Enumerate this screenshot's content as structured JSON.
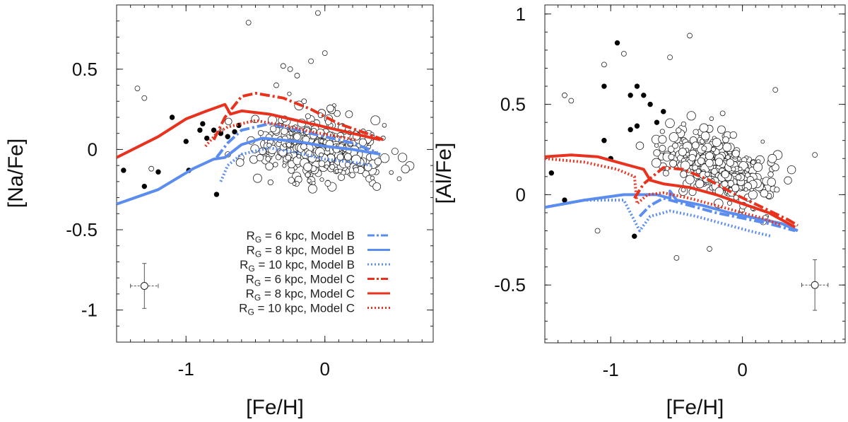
{
  "chart_data": [
    {
      "type": "scatter",
      "name": "sodium-panel",
      "xlabel": "[Fe/H]",
      "ylabel": "[Na/Fe]",
      "xlim": [
        -1.5,
        0.78
      ],
      "ylim": [
        -1.2,
        0.9
      ],
      "xticks": [
        {
          "v": -1,
          "label": "-1"
        },
        {
          "v": 0,
          "label": "0"
        }
      ],
      "yticks": [
        {
          "v": 0.5,
          "label": "0.5"
        },
        {
          "v": 0,
          "label": "0"
        },
        {
          "v": -0.5,
          "label": "-0.5"
        },
        {
          "v": -1,
          "label": "-1"
        }
      ],
      "filled_stars": [
        [
          -1.45,
          -0.13
        ],
        [
          -1.3,
          -0.23
        ],
        [
          -1.2,
          -0.14
        ],
        [
          -1.1,
          0.2
        ],
        [
          -1.0,
          0.05
        ],
        [
          -0.98,
          -0.13
        ],
        [
          -0.9,
          0.12
        ],
        [
          -0.85,
          0.07
        ],
        [
          -0.8,
          0.12
        ],
        [
          -0.75,
          0.1
        ],
        [
          -0.7,
          0.08
        ],
        [
          -0.65,
          0.11
        ],
        [
          -0.78,
          -0.28
        ],
        [
          -0.88,
          0.16
        ],
        [
          -0.62,
          0.15
        ]
      ],
      "open_stars": [
        [
          -1.35,
          0.38
        ],
        [
          -1.3,
          0.32
        ],
        [
          -1.25,
          -0.12
        ],
        [
          -0.55,
          0.79
        ],
        [
          -0.3,
          0.52
        ],
        [
          -0.25,
          0.5
        ],
        [
          -0.2,
          0.46
        ],
        [
          -0.05,
          0.85
        ],
        [
          -0.1,
          0.55
        ],
        [
          0.0,
          0.6
        ],
        [
          -0.35,
          0.4
        ],
        [
          -0.15,
          0.3
        ]
      ],
      "cloud": {
        "x_center": -0.03,
        "x_spread": 0.42,
        "y_center": 0.0,
        "y_spread": 0.16,
        "count": 380
      },
      "error_bar": {
        "x": -1.3,
        "y": -0.85,
        "dx": 0.1,
        "dy": 0.14
      },
      "series": [
        {
          "name": "RG = 6 kpc, Model B",
          "style": "dashdot",
          "color": "#5b8cf0",
          "points": [
            [
              -0.78,
              -0.05
            ],
            [
              -0.7,
              0.04
            ],
            [
              -0.6,
              0.12
            ],
            [
              -0.4,
              0.16
            ],
            [
              -0.2,
              0.12
            ],
            [
              0.0,
              0.08
            ],
            [
              0.2,
              0.04
            ],
            [
              0.38,
              -0.02
            ]
          ]
        },
        {
          "name": "RG = 8 kpc, Model B",
          "style": "solid",
          "color": "#5b8cf0",
          "points": [
            [
              -1.5,
              -0.34
            ],
            [
              -1.2,
              -0.25
            ],
            [
              -0.95,
              -0.12
            ],
            [
              -0.8,
              -0.06
            ],
            [
              -0.72,
              -0.05
            ],
            [
              -0.6,
              0.03
            ],
            [
              -0.45,
              0.07
            ],
            [
              -0.2,
              0.05
            ],
            [
              0.0,
              0.02
            ],
            [
              0.2,
              0.0
            ],
            [
              0.4,
              -0.03
            ]
          ]
        },
        {
          "name": "RG = 10 kpc, Model B",
          "style": "dotted",
          "color": "#5b8cf0",
          "points": [
            [
              -0.75,
              -0.2
            ],
            [
              -0.7,
              -0.1
            ],
            [
              -0.6,
              -0.03
            ],
            [
              -0.4,
              0.01
            ],
            [
              -0.2,
              -0.02
            ],
            [
              0.0,
              -0.06
            ],
            [
              0.2,
              -0.08
            ],
            [
              0.34,
              -0.1
            ]
          ]
        },
        {
          "name": "RG = 6 kpc, Model C",
          "style": "dashdot",
          "color": "#e8321e",
          "points": [
            [
              -0.8,
              0.06
            ],
            [
              -0.72,
              0.2
            ],
            [
              -0.6,
              0.33
            ],
            [
              -0.5,
              0.35
            ],
            [
              -0.3,
              0.32
            ],
            [
              -0.1,
              0.25
            ],
            [
              0.1,
              0.16
            ],
            [
              0.3,
              0.1
            ],
            [
              0.42,
              0.06
            ]
          ]
        },
        {
          "name": "RG = 8 kpc, Model C",
          "style": "solid",
          "color": "#e8321e",
          "points": [
            [
              -1.5,
              -0.05
            ],
            [
              -1.2,
              0.08
            ],
            [
              -1.0,
              0.19
            ],
            [
              -0.85,
              0.24
            ],
            [
              -0.72,
              0.28
            ],
            [
              -0.68,
              0.22
            ],
            [
              -0.6,
              0.24
            ],
            [
              -0.4,
              0.22
            ],
            [
              -0.2,
              0.18
            ],
            [
              0.0,
              0.14
            ],
            [
              0.2,
              0.1
            ],
            [
              0.4,
              0.06
            ]
          ]
        },
        {
          "name": "RG = 10 kpc, Model C",
          "style": "dotted",
          "color": "#e8321e",
          "points": [
            [
              -0.86,
              0.02
            ],
            [
              -0.78,
              0.1
            ],
            [
              -0.7,
              0.14
            ],
            [
              -0.5,
              0.18
            ],
            [
              -0.3,
              0.15
            ],
            [
              -0.1,
              0.11
            ],
            [
              0.1,
              0.08
            ],
            [
              0.22,
              0.06
            ]
          ]
        }
      ],
      "legend": {
        "placement": "bottom-right",
        "entries": [
          {
            "pre": "R",
            "sub": "G",
            "post": " = 6 kpc, Model B",
            "style": "dashdot",
            "color": "#5b8cf0"
          },
          {
            "pre": "R",
            "sub": "G",
            "post": " = 8 kpc, Model B",
            "style": "solid",
            "color": "#5b8cf0"
          },
          {
            "pre": "R",
            "sub": "G",
            "post": " = 10 kpc, Model B",
            "style": "dotted",
            "color": "#5b8cf0"
          },
          {
            "pre": "R",
            "sub": "G",
            "post": " = 6 kpc, Model C",
            "style": "dashdot",
            "color": "#e8321e"
          },
          {
            "pre": "R",
            "sub": "G",
            "post": " = 8 kpc, Model C",
            "style": "solid",
            "color": "#e8321e"
          },
          {
            "pre": "R",
            "sub": "G",
            "post": " = 10 kpc, Model C",
            "style": "dotted",
            "color": "#e8321e"
          }
        ]
      }
    },
    {
      "type": "scatter",
      "name": "aluminium-panel",
      "xlabel": "[Fe/H]",
      "ylabel": "[Al/Fe]",
      "xlim": [
        -1.5,
        0.78
      ],
      "ylim": [
        -0.82,
        1.05
      ],
      "xticks": [
        {
          "v": -1,
          "label": "-1"
        },
        {
          "v": 0,
          "label": "0"
        }
      ],
      "yticks": [
        {
          "v": 1,
          "label": "1"
        },
        {
          "v": 0.5,
          "label": "0.5"
        },
        {
          "v": 0,
          "label": "0"
        },
        {
          "v": -0.5,
          "label": "-0.5"
        }
      ],
      "filled_stars": [
        [
          -0.95,
          0.84
        ],
        [
          -1.05,
          0.6
        ],
        [
          -0.8,
          0.6
        ],
        [
          -0.85,
          0.55
        ],
        [
          -0.75,
          0.55
        ],
        [
          -0.7,
          0.5
        ],
        [
          -0.6,
          0.46
        ],
        [
          -0.65,
          0.4
        ],
        [
          -0.8,
          0.38
        ],
        [
          -0.85,
          0.36
        ],
        [
          -1.05,
          0.3
        ],
        [
          -1.0,
          0.2
        ],
        [
          -1.45,
          0.12
        ],
        [
          -1.35,
          -0.03
        ],
        [
          -0.82,
          -0.23
        ]
      ],
      "open_stars": [
        [
          -1.05,
          0.72
        ],
        [
          -0.9,
          0.78
        ],
        [
          -0.55,
          0.76
        ],
        [
          -0.4,
          0.88
        ],
        [
          -1.35,
          0.55
        ],
        [
          -1.3,
          0.52
        ],
        [
          -0.15,
          0.45
        ],
        [
          0.25,
          0.58
        ],
        [
          0.55,
          0.22
        ],
        [
          -0.25,
          -0.3
        ],
        [
          -1.1,
          -0.2
        ],
        [
          -0.5,
          -0.35
        ]
      ],
      "cloud": {
        "x_center": -0.18,
        "x_spread": 0.38,
        "y_center": 0.15,
        "y_spread": 0.14,
        "count": 380
      },
      "error_bar": {
        "x": 0.55,
        "y": -0.5,
        "dx": 0.1,
        "dy": 0.14
      },
      "series": [
        {
          "name": "RG = 6 kpc, Model B",
          "style": "dashdot",
          "color": "#5b8cf0",
          "points": [
            [
              -0.78,
              -0.12
            ],
            [
              -0.7,
              -0.06
            ],
            [
              -0.6,
              -0.02
            ],
            [
              -0.4,
              -0.06
            ],
            [
              -0.2,
              -0.1
            ],
            [
              0.0,
              -0.13
            ],
            [
              0.2,
              -0.16
            ],
            [
              0.4,
              -0.2
            ]
          ]
        },
        {
          "name": "RG = 8 kpc, Model B",
          "style": "solid",
          "color": "#5b8cf0",
          "points": [
            [
              -1.5,
              -0.07
            ],
            [
              -1.2,
              -0.03
            ],
            [
              -0.9,
              0.0
            ],
            [
              -0.65,
              0.0
            ],
            [
              -0.55,
              -0.02
            ],
            [
              -0.55,
              0.02
            ],
            [
              -0.5,
              -0.03
            ],
            [
              -0.3,
              -0.06
            ],
            [
              -0.1,
              -0.1
            ],
            [
              0.1,
              -0.13
            ],
            [
              0.3,
              -0.16
            ],
            [
              0.42,
              -0.2
            ]
          ]
        },
        {
          "name": "RG = 10 kpc, Model B",
          "style": "dotted",
          "color": "#5b8cf0",
          "points": [
            [
              -1.5,
              -0.07
            ],
            [
              -1.2,
              -0.03
            ],
            [
              -0.9,
              -0.03
            ],
            [
              -0.78,
              -0.2
            ],
            [
              -0.7,
              -0.12
            ],
            [
              -0.55,
              -0.09
            ],
            [
              -0.35,
              -0.12
            ],
            [
              -0.15,
              -0.16
            ],
            [
              0.05,
              -0.2
            ],
            [
              0.22,
              -0.23
            ]
          ]
        },
        {
          "name": "RG = 6 kpc, Model C",
          "style": "dashdot",
          "color": "#e8321e",
          "points": [
            [
              -0.82,
              -0.02
            ],
            [
              -0.75,
              0.06
            ],
            [
              -0.6,
              0.15
            ],
            [
              -0.45,
              0.14
            ],
            [
              -0.25,
              0.08
            ],
            [
              -0.05,
              0.0
            ],
            [
              0.15,
              -0.07
            ],
            [
              0.35,
              -0.14
            ],
            [
              0.42,
              -0.17
            ]
          ]
        },
        {
          "name": "RG = 8 kpc, Model C",
          "style": "solid",
          "color": "#e8321e",
          "points": [
            [
              -1.5,
              0.21
            ],
            [
              -1.3,
              0.22
            ],
            [
              -1.1,
              0.21
            ],
            [
              -0.85,
              0.16
            ],
            [
              -0.75,
              0.14
            ],
            [
              -0.7,
              0.08
            ],
            [
              -0.6,
              0.06
            ],
            [
              -0.4,
              0.04
            ],
            [
              -0.2,
              0.0
            ],
            [
              0.0,
              -0.05
            ],
            [
              0.2,
              -0.1
            ],
            [
              0.4,
              -0.18
            ]
          ]
        },
        {
          "name": "RG = 10 kpc, Model C",
          "style": "dotted",
          "color": "#e8321e",
          "points": [
            [
              -1.5,
              0.2
            ],
            [
              -1.2,
              0.18
            ],
            [
              -0.95,
              0.14
            ],
            [
              -0.82,
              0.1
            ],
            [
              -0.8,
              -0.05
            ],
            [
              -0.72,
              0.0
            ],
            [
              -0.6,
              0.01
            ],
            [
              -0.4,
              -0.02
            ],
            [
              -0.2,
              -0.06
            ],
            [
              0.0,
              -0.1
            ],
            [
              0.15,
              -0.13
            ],
            [
              0.3,
              -0.17
            ]
          ]
        }
      ]
    }
  ]
}
